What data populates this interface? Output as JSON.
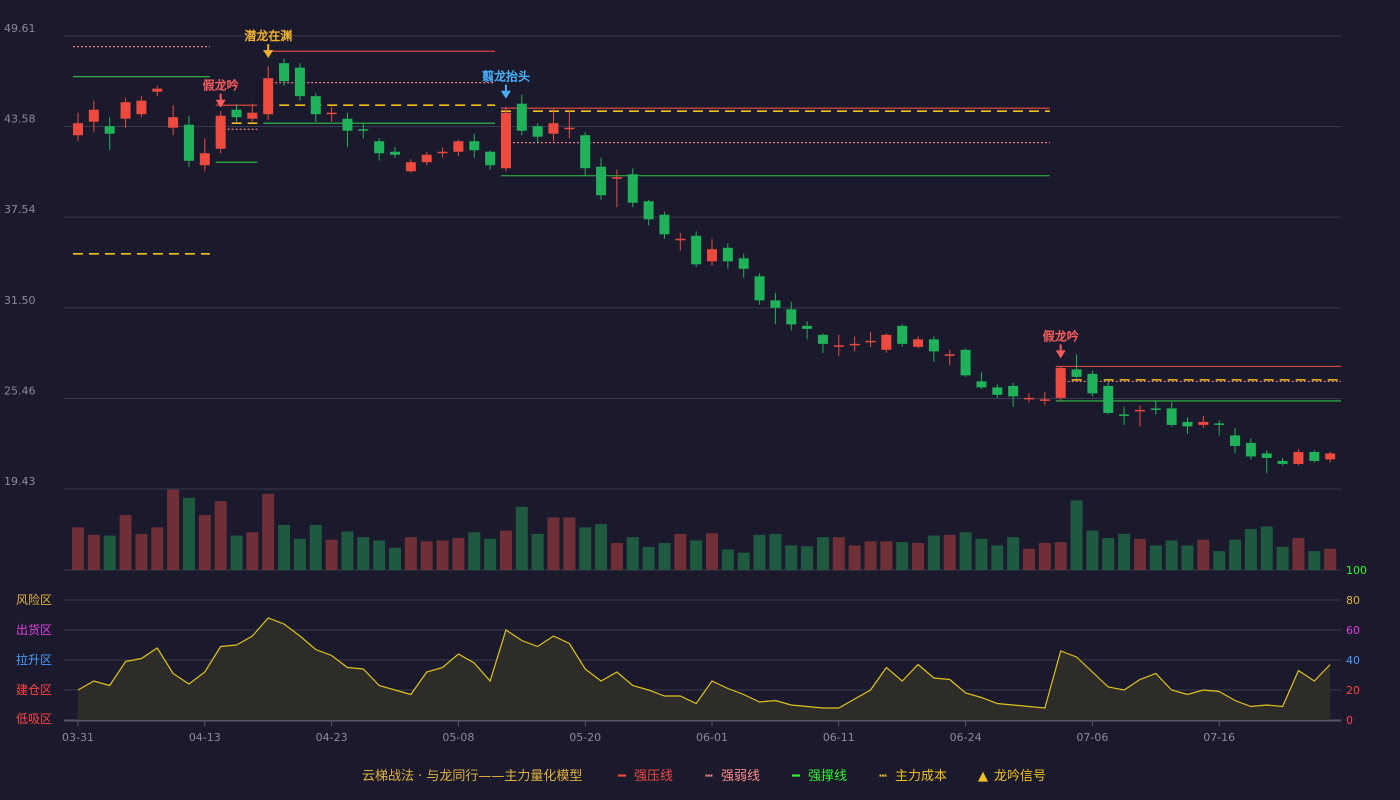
{
  "chart_data": {
    "type": "candlestick",
    "price_axis": {
      "ticks": [
        19.43,
        25.46,
        31.5,
        37.54,
        43.58,
        49.61
      ],
      "ylim": [
        19.43,
        49.61
      ]
    },
    "x_labels": [
      {
        "i": 0,
        "label": "03-31"
      },
      {
        "i": 8,
        "label": "04-13"
      },
      {
        "i": 16,
        "label": "04-23"
      },
      {
        "i": 24,
        "label": "05-08"
      },
      {
        "i": 32,
        "label": "05-20"
      },
      {
        "i": 40,
        "label": "06-01"
      },
      {
        "i": 48,
        "label": "06-11"
      },
      {
        "i": 56,
        "label": "06-24"
      },
      {
        "i": 64,
        "label": "07-06"
      },
      {
        "i": 72,
        "label": "07-16"
      }
    ],
    "candles": [
      [
        43.0,
        43.8,
        44.5,
        42.6
      ],
      [
        43.9,
        44.7,
        45.3,
        43.2
      ],
      [
        43.6,
        43.1,
        44.2,
        42.0
      ],
      [
        44.1,
        45.2,
        45.5,
        43.5
      ],
      [
        44.4,
        45.3,
        45.6,
        44.2
      ],
      [
        45.9,
        46.1,
        46.3,
        45.6
      ],
      [
        43.5,
        44.2,
        45.0,
        43.0
      ],
      [
        43.7,
        41.3,
        44.3,
        40.9
      ],
      [
        41.0,
        41.8,
        42.8,
        40.6
      ],
      [
        42.1,
        44.3,
        44.6,
        41.8
      ],
      [
        44.7,
        44.2,
        45.1,
        43.9
      ],
      [
        44.1,
        44.5,
        45.1,
        43.9
      ],
      [
        44.4,
        46.8,
        47.6,
        44.0
      ],
      [
        47.8,
        46.6,
        48.1,
        46.3
      ],
      [
        47.5,
        45.6,
        47.8,
        45.3
      ],
      [
        45.6,
        44.4,
        45.8,
        43.9
      ],
      [
        44.4,
        44.5,
        44.9,
        43.9
      ],
      [
        44.1,
        43.3,
        44.5,
        42.2
      ],
      [
        43.4,
        43.3,
        43.8,
        42.8
      ],
      [
        42.6,
        41.8,
        42.8,
        41.3
      ],
      [
        41.9,
        41.7,
        42.2,
        41.5
      ],
      [
        40.6,
        41.2,
        41.4,
        40.5
      ],
      [
        41.2,
        41.7,
        41.9,
        41.0
      ],
      [
        41.8,
        41.9,
        42.2,
        41.5
      ],
      [
        41.9,
        42.6,
        42.7,
        41.6
      ],
      [
        42.6,
        42.0,
        43.1,
        41.5
      ],
      [
        41.9,
        41.0,
        42.0,
        40.7
      ],
      [
        40.8,
        44.5,
        44.9,
        40.6
      ],
      [
        45.1,
        43.3,
        45.7,
        43.0
      ],
      [
        43.6,
        42.9,
        43.8,
        42.5
      ],
      [
        43.1,
        43.8,
        44.8,
        42.6
      ],
      [
        43.5,
        43.5,
        44.6,
        42.8
      ],
      [
        43.0,
        40.8,
        43.2,
        40.3
      ],
      [
        40.9,
        39.0,
        41.5,
        38.7
      ],
      [
        40.2,
        40.2,
        40.7,
        38.2
      ],
      [
        40.4,
        38.5,
        40.8,
        38.2
      ],
      [
        38.6,
        37.4,
        38.7,
        37.0
      ],
      [
        37.7,
        36.4,
        37.9,
        36.1
      ],
      [
        36.1,
        36.1,
        36.5,
        35.3
      ],
      [
        36.3,
        34.4,
        36.6,
        34.2
      ],
      [
        34.6,
        35.4,
        36.1,
        34.3
      ],
      [
        35.5,
        34.6,
        35.8,
        34.1
      ],
      [
        34.8,
        34.1,
        35.1,
        33.5
      ],
      [
        33.6,
        32.0,
        33.8,
        31.7
      ],
      [
        32.0,
        31.5,
        32.5,
        30.4
      ],
      [
        31.4,
        30.4,
        31.9,
        30.0
      ],
      [
        30.3,
        30.1,
        30.6,
        29.4
      ],
      [
        29.7,
        29.1,
        29.8,
        28.5
      ],
      [
        28.9,
        29.0,
        29.7,
        28.3
      ],
      [
        29.0,
        29.1,
        29.6,
        28.6
      ],
      [
        29.3,
        29.3,
        29.9,
        28.9
      ],
      [
        28.7,
        29.7,
        29.8,
        28.5
      ],
      [
        30.3,
        29.1,
        30.4,
        28.9
      ],
      [
        28.9,
        29.4,
        29.6,
        28.8
      ],
      [
        29.4,
        28.6,
        29.6,
        27.9
      ],
      [
        28.4,
        28.4,
        28.7,
        27.7
      ],
      [
        28.7,
        27.0,
        28.8,
        26.9
      ],
      [
        26.6,
        26.2,
        27.2,
        26.1
      ],
      [
        26.2,
        25.7,
        26.4,
        25.5
      ],
      [
        26.3,
        25.6,
        26.5,
        24.9
      ],
      [
        25.4,
        25.5,
        25.8,
        25.2
      ],
      [
        25.3,
        25.4,
        25.9,
        25.0
      ],
      [
        25.5,
        27.5,
        27.6,
        25.3
      ],
      [
        27.4,
        26.9,
        28.4,
        26.8
      ],
      [
        27.1,
        25.8,
        27.3,
        25.6
      ],
      [
        26.3,
        24.5,
        26.6,
        24.4
      ],
      [
        24.4,
        24.3,
        24.9,
        23.7
      ],
      [
        24.6,
        24.7,
        25.0,
        23.6
      ],
      [
        24.8,
        24.7,
        25.3,
        24.4
      ],
      [
        24.8,
        23.7,
        25.2,
        23.6
      ],
      [
        23.9,
        23.6,
        24.2,
        23.1
      ],
      [
        23.7,
        23.9,
        24.3,
        23.5
      ],
      [
        23.8,
        23.7,
        24.0,
        23.0
      ],
      [
        23.0,
        22.3,
        23.5,
        21.8
      ],
      [
        22.5,
        21.6,
        22.8,
        21.4
      ],
      [
        21.8,
        21.5,
        22.0,
        20.5
      ],
      [
        21.3,
        21.1,
        21.5,
        21.0
      ],
      [
        21.1,
        21.9,
        22.1,
        21.0
      ],
      [
        21.9,
        21.3,
        22.0,
        21.2
      ],
      [
        21.4,
        21.8,
        21.9,
        21.2
      ]
    ],
    "volume_ratio": [
      0.52,
      0.43,
      0.42,
      0.67,
      0.44,
      0.52,
      0.98,
      0.88,
      0.67,
      0.84,
      0.42,
      0.46,
      0.93,
      0.55,
      0.38,
      0.55,
      0.37,
      0.47,
      0.4,
      0.36,
      0.27,
      0.4,
      0.35,
      0.36,
      0.39,
      0.46,
      0.38,
      0.48,
      0.77,
      0.44,
      0.64,
      0.64,
      0.52,
      0.56,
      0.33,
      0.4,
      0.28,
      0.33,
      0.44,
      0.36,
      0.45,
      0.25,
      0.21,
      0.43,
      0.44,
      0.3,
      0.29,
      0.4,
      0.4,
      0.3,
      0.35,
      0.35,
      0.34,
      0.33,
      0.42,
      0.43,
      0.46,
      0.38,
      0.3,
      0.4,
      0.26,
      0.33,
      0.34,
      0.85,
      0.48,
      0.39,
      0.44,
      0.38,
      0.3,
      0.36,
      0.3,
      0.37,
      0.23,
      0.37,
      0.5,
      0.53,
      0.28,
      0.39,
      0.23,
      0.26
    ],
    "oscillator": [
      20,
      26,
      23,
      39,
      41,
      48,
      31,
      24,
      32,
      49,
      50,
      56,
      68,
      64,
      56,
      47,
      43,
      35,
      34,
      23,
      20,
      17,
      32,
      35,
      44,
      38,
      26,
      60,
      53,
      49,
      56,
      51,
      34,
      26,
      32,
      23,
      20,
      16,
      16,
      11,
      26,
      21,
      17,
      12,
      13,
      10,
      9,
      8,
      8,
      14,
      20,
      35,
      26,
      37,
      28,
      27,
      18,
      15,
      11,
      10,
      9,
      8,
      46,
      42,
      32,
      22,
      20,
      27,
      31,
      20,
      17,
      20,
      19,
      13,
      9,
      10,
      9,
      33,
      26,
      37
    ],
    "osc_axis": {
      "ticks": [
        0,
        20,
        40,
        60,
        80,
        100
      ],
      "ylim": [
        0,
        100
      ]
    },
    "zones": [
      {
        "label": "风险区",
        "color": "#e0b040"
      },
      {
        "label": "出货区",
        "color": "#e040e0"
      },
      {
        "label": "拉升区",
        "color": "#4a9cff"
      },
      {
        "label": "建仓区",
        "color": "#ff4444"
      },
      {
        "label": "低吸区",
        "color": "#ff4444"
      }
    ],
    "osc_tick_colors": [
      "#ff4444",
      "#ff4444",
      "#4a9cff",
      "#e040e0",
      "#e0b040",
      "#33ee33"
    ],
    "signals": [
      {
        "i": 9,
        "label": "假龙吟",
        "type": "down",
        "color": "#ff5c5c",
        "price": 44.3
      },
      {
        "i": 12,
        "label": "潜龙在渊",
        "type": "down",
        "color": "#f0b030",
        "price": 47.6
      },
      {
        "i": 27,
        "label": "翦龙抬头",
        "type": "down",
        "color": "#4ab0ff",
        "price": 44.9
      },
      {
        "i": 62,
        "label": "假龙吟",
        "type": "down",
        "color": "#ff5c5c",
        "price": 27.6
      }
    ],
    "levels": [
      {
        "type": "resistance",
        "style": "solid",
        "from": 12,
        "to": 26,
        "price": 48.6
      },
      {
        "type": "weak",
        "style": "dotted",
        "from": 0,
        "to": 8,
        "price": 48.9
      },
      {
        "type": "weak",
        "style": "dotted",
        "from": 12,
        "to": 26,
        "price": 46.5
      },
      {
        "type": "support",
        "style": "solid",
        "from": 0,
        "to": 8,
        "price": 46.9
      },
      {
        "type": "support",
        "style": "solid",
        "from": 12,
        "to": 26,
        "price": 43.8
      },
      {
        "type": "cost",
        "style": "dashed",
        "from": 0,
        "to": 8,
        "price": 35.1
      },
      {
        "type": "cost",
        "style": "dashed",
        "from": 12,
        "to": 26,
        "price": 45.0
      },
      {
        "type": "resistance",
        "style": "solid",
        "from": 9,
        "to": 11,
        "price": 45.0
      },
      {
        "type": "weak",
        "style": "dotted",
        "from": 9,
        "to": 11,
        "price": 43.4
      },
      {
        "type": "cost",
        "style": "dashed",
        "from": 9,
        "to": 11,
        "price": 43.8
      },
      {
        "type": "support",
        "style": "solid",
        "from": 9,
        "to": 11,
        "price": 41.2
      },
      {
        "type": "resistance",
        "style": "solid",
        "from": 27,
        "to": 61,
        "price": 44.8
      },
      {
        "type": "cost",
        "style": "dashed",
        "from": 27,
        "to": 61,
        "price": 44.6
      },
      {
        "type": "weak",
        "style": "dotted",
        "from": 27,
        "to": 61,
        "price": 42.5
      },
      {
        "type": "support",
        "style": "solid",
        "from": 27,
        "to": 61,
        "price": 40.3
      },
      {
        "type": "resistance",
        "style": "solid",
        "from": 62,
        "to": 79,
        "price": 27.6
      },
      {
        "type": "cost",
        "style": "dashed",
        "from": 62,
        "to": 79,
        "price": 26.7
      },
      {
        "type": "weak",
        "style": "dotted",
        "from": 62,
        "to": 79,
        "price": 26.6
      },
      {
        "type": "support",
        "style": "solid",
        "from": 62,
        "to": 79,
        "price": 25.3
      }
    ],
    "colors": {
      "up": "#ef4a3f",
      "down": "#1fb25a",
      "vol_up": "#6e2f36",
      "vol_down": "#1f5a40",
      "resistance": "#ef4a3f",
      "weak": "#ff8a8a",
      "support": "#33c04a",
      "cost": "#f0c020",
      "osc_line": "#e0c020",
      "osc_fill": "#2e2c28",
      "grid": "#3a3a4e"
    },
    "legend": {
      "model_label": "云梯战法 · 与龙同行——主力量化模型",
      "items": [
        {
          "label": "强压线",
          "marker": "━",
          "color": "#ef4a3f"
        },
        {
          "label": "强弱线",
          "marker": "┅",
          "color": "#ff8a8a"
        },
        {
          "label": "强撑线",
          "marker": "━",
          "color": "#33ee33"
        },
        {
          "label": "主力成本",
          "marker": "┅",
          "color": "#f0c020"
        },
        {
          "label": "龙吟信号",
          "marker": "▲",
          "color": "#f0c020"
        }
      ]
    }
  }
}
